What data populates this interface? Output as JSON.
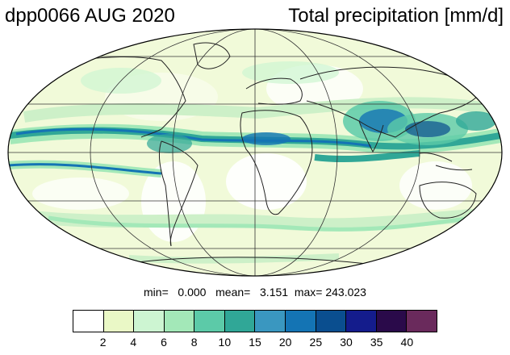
{
  "header": {
    "left_title": "dpp0066 AUG 2020",
    "right_title": "Total precipitation [mm/d]"
  },
  "stats": {
    "min_label": "min=",
    "min_value": "0.000",
    "mean_label": "mean=",
    "mean_value": "3.151",
    "max_label": "max=",
    "max_value": "243.023"
  },
  "map": {
    "projection": "mollweide",
    "grid": true,
    "coastlines": true
  },
  "colorbar": {
    "colors": [
      "#ffffff",
      "#eaf8c6",
      "#cdf5d2",
      "#a3e8b8",
      "#5ccaa8",
      "#30a797",
      "#3a97c0",
      "#1474b4",
      "#0a4e8f",
      "#141c8c",
      "#2a0a4a",
      "#6a2a5c"
    ],
    "labels": [
      "2",
      "4",
      "6",
      "8",
      "10",
      "15",
      "20",
      "25",
      "30",
      "35",
      "40"
    ]
  }
}
